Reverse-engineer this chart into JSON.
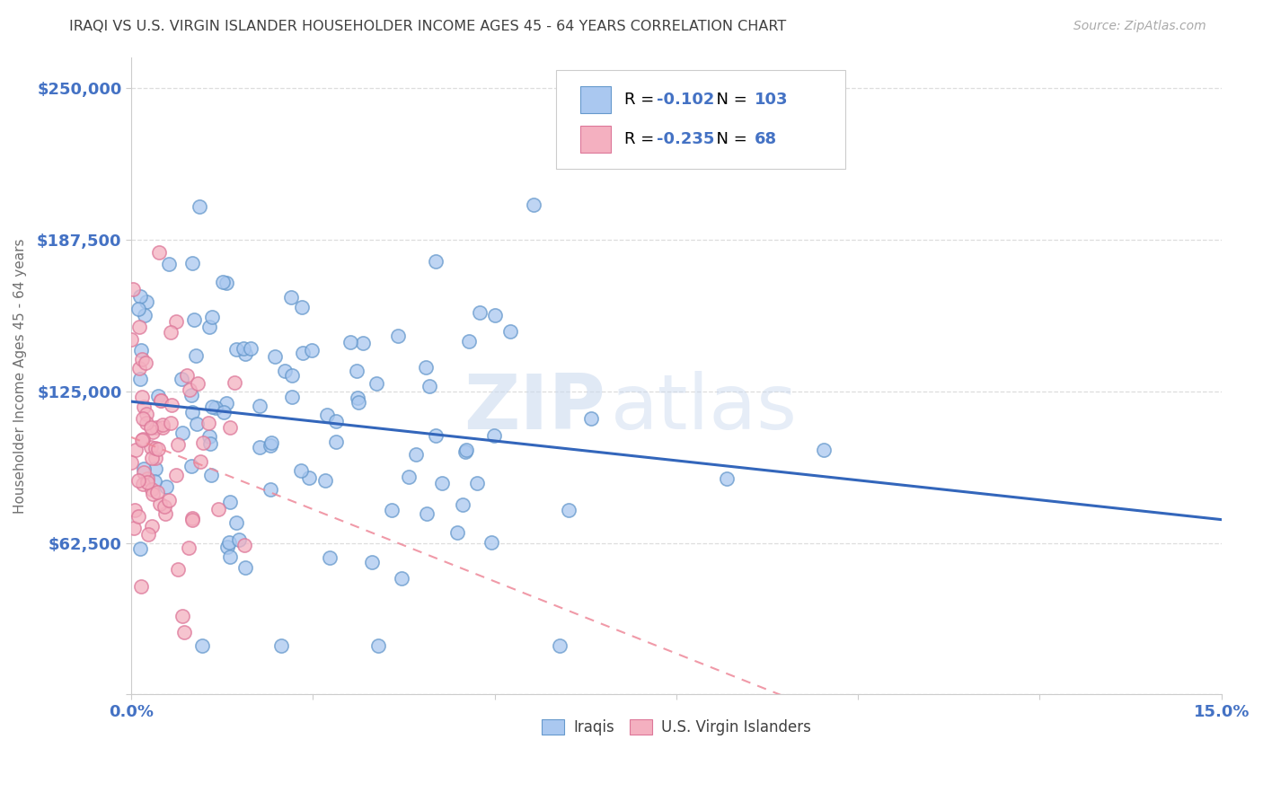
{
  "title": "IRAQI VS U.S. VIRGIN ISLANDER HOUSEHOLDER INCOME AGES 45 - 64 YEARS CORRELATION CHART",
  "source": "Source: ZipAtlas.com",
  "ylabel": "Householder Income Ages 45 - 64 years",
  "xlim": [
    0.0,
    0.15
  ],
  "ylim": [
    0,
    262500
  ],
  "xticks": [
    0.0,
    0.025,
    0.05,
    0.075,
    0.1,
    0.125,
    0.15
  ],
  "xticklabels": [
    "0.0%",
    "",
    "",
    "",
    "",
    "",
    "15.0%"
  ],
  "yticks": [
    0,
    62500,
    125000,
    187500,
    250000
  ],
  "yticklabels": [
    "",
    "$62,500",
    "$125,000",
    "$187,500",
    "$250,000"
  ],
  "iraqis_dot_color": "#aac8f0",
  "iraqis_edge_color": "#6699cc",
  "vi_dot_color": "#f4b0c0",
  "vi_edge_color": "#dd7799",
  "iraqis_line_color": "#3366bb",
  "vi_line_color": "#ee8899",
  "legend_color": "#4472c4",
  "R_iraqis": -0.102,
  "N_iraqis": 103,
  "R_vi": -0.235,
  "N_vi": 68,
  "watermark_zip": "ZIP",
  "watermark_atlas": "atlas",
  "background_color": "#ffffff",
  "grid_color": "#dddddd",
  "title_color": "#404040",
  "axis_label_color": "#707070",
  "tick_color": "#4472c4"
}
